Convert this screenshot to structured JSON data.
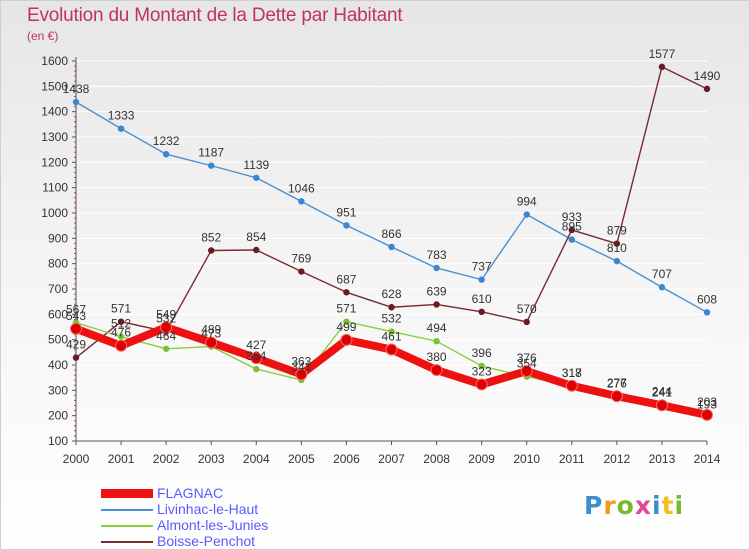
{
  "title": "Evolution du Montant de la Dette par Habitant",
  "unit": "(en €)",
  "logo": {
    "text": "Proxiti",
    "letters": [
      "P",
      "r",
      "o",
      "x",
      "i",
      "t",
      "i"
    ]
  },
  "colors": {
    "title": "#c0306a",
    "axis_text": "#333333",
    "legend_text": "#5a5aff",
    "grid": "#ffffff"
  },
  "chart_data": {
    "type": "line",
    "title": "Evolution du Montant de la Dette par Habitant",
    "ylabel": "(en €)",
    "xlabel": "",
    "ylim": [
      100,
      1600
    ],
    "yticks": [
      100,
      200,
      300,
      400,
      500,
      600,
      700,
      800,
      900,
      1000,
      1100,
      1200,
      1300,
      1400,
      1500,
      1600
    ],
    "grid": true,
    "legend": "bottom-left",
    "x": [
      "2000",
      "2001",
      "2002",
      "2003",
      "2004",
      "2005",
      "2006",
      "2007",
      "2008",
      "2009",
      "2010",
      "2011",
      "2012",
      "2013",
      "2014"
    ],
    "series": [
      {
        "name": "Livinhac-le-Haut",
        "color": "#4a90d0",
        "marker": "#3a86d0",
        "thick": false,
        "labels": true,
        "values": [
          1438,
          1333,
          1232,
          1187,
          1139,
          1046,
          951,
          866,
          783,
          737,
          994,
          895,
          810,
          707,
          608
        ]
      },
      {
        "name": "Boisse-Penchot",
        "color": "#7a2a2e",
        "marker": "#6a1a22",
        "thick": false,
        "labels": true,
        "values": [
          429,
          571,
          532,
          852,
          854,
          769,
          687,
          628,
          639,
          610,
          570,
          933,
          879,
          1577,
          1490
        ]
      },
      {
        "name": "Almont-les-Junies",
        "color": "#8ad040",
        "marker": "#7cc230",
        "thick": false,
        "labels": true,
        "values": [
          567,
          512,
          464,
          473,
          384,
          341,
          571,
          532,
          494,
          396,
          354,
          317,
          276,
          244,
          193
        ]
      },
      {
        "name": "FLAGNAC",
        "color": "#ee1111",
        "marker": "#dd0000",
        "thick": true,
        "labels": true,
        "values": [
          543,
          476,
          549,
          489,
          427,
          363,
          499,
          461,
          380,
          323,
          376,
          318,
          277,
          241,
          203
        ]
      }
    ],
    "legend_order": [
      "FLAGNAC",
      "Livinhac-le-Haut",
      "Almont-les-Junies",
      "Boisse-Penchot"
    ]
  }
}
